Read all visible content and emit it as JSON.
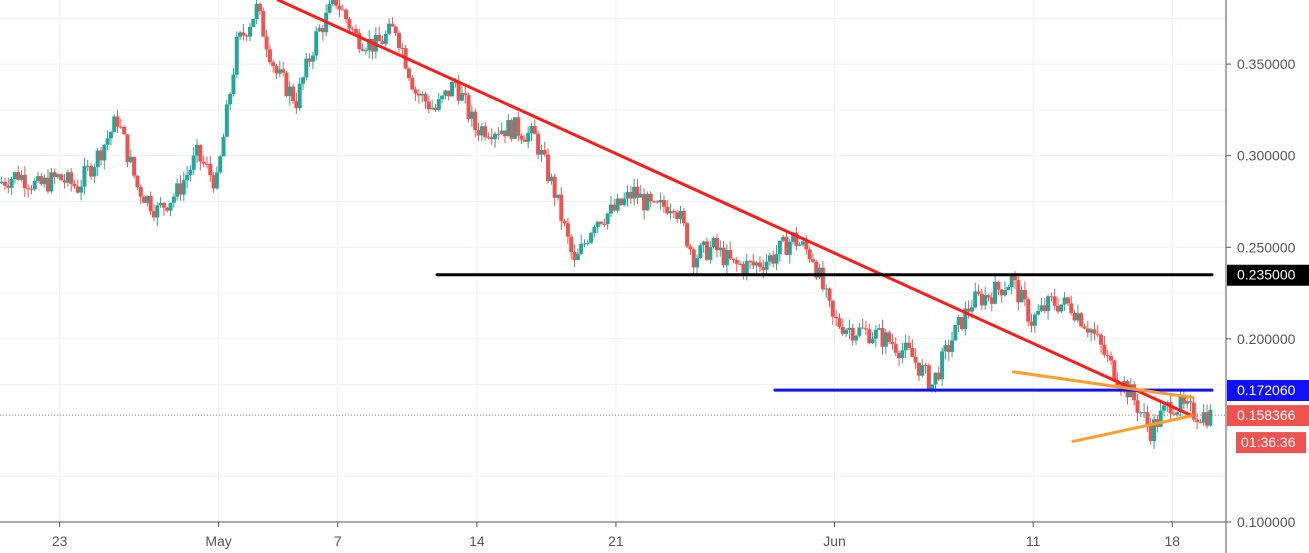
{
  "chart_data": {
    "type": "candlestick",
    "y_axis_position": "right",
    "ylim": [
      0.1,
      0.385
    ],
    "yticks": [
      {
        "value": 0.35,
        "label": "0.350000"
      },
      {
        "value": 0.3,
        "label": "0.300000"
      },
      {
        "value": 0.25,
        "label": "0.250000"
      },
      {
        "value": 0.2,
        "label": "0.200000"
      },
      {
        "value": 0.1,
        "label": "0.100000"
      }
    ],
    "xlim": [
      "2018-04-20",
      "2018-06-20"
    ],
    "xticks": [
      {
        "date": "2018-04-23",
        "label": "23"
      },
      {
        "date": "2018-05-01",
        "label": "May"
      },
      {
        "date": "2018-05-07",
        "label": "7"
      },
      {
        "date": "2018-05-14",
        "label": "14"
      },
      {
        "date": "2018-05-21",
        "label": "21"
      },
      {
        "date": "2018-06-01",
        "label": "Jun"
      },
      {
        "date": "2018-06-11",
        "label": "11"
      },
      {
        "date": "2018-06-18",
        "label": "18"
      }
    ],
    "grid": true,
    "up_color": "#26a69a",
    "down_color": "#ef5350",
    "price_path": [
      [
        "2018-04-20",
        0.285
      ],
      [
        "2018-04-21",
        0.29
      ],
      [
        "2018-04-22",
        0.283
      ],
      [
        "2018-04-23",
        0.288
      ],
      [
        "2018-04-24",
        0.283
      ],
      [
        "2018-04-25",
        0.3
      ],
      [
        "2018-04-26",
        0.32
      ],
      [
        "2018-04-27",
        0.283
      ],
      [
        "2018-04-28",
        0.27
      ],
      [
        "2018-04-29",
        0.28
      ],
      [
        "2018-04-30",
        0.3
      ],
      [
        "2018-05-01",
        0.285
      ],
      [
        "2018-05-02",
        0.36
      ],
      [
        "2018-05-03",
        0.38
      ],
      [
        "2018-05-04",
        0.345
      ],
      [
        "2018-05-05",
        0.33
      ],
      [
        "2018-05-06",
        0.365
      ],
      [
        "2018-05-07",
        0.385
      ],
      [
        "2018-05-08",
        0.365
      ],
      [
        "2018-05-09",
        0.36
      ],
      [
        "2018-05-10",
        0.37
      ],
      [
        "2018-05-11",
        0.335
      ],
      [
        "2018-05-12",
        0.325
      ],
      [
        "2018-05-13",
        0.34
      ],
      [
        "2018-05-14",
        0.315
      ],
      [
        "2018-05-15",
        0.315
      ],
      [
        "2018-05-16",
        0.315
      ],
      [
        "2018-05-17",
        0.31
      ],
      [
        "2018-05-18",
        0.28
      ],
      [
        "2018-05-19",
        0.24
      ],
      [
        "2018-05-20",
        0.265
      ],
      [
        "2018-05-21",
        0.27
      ],
      [
        "2018-05-22",
        0.28
      ],
      [
        "2018-05-23",
        0.27
      ],
      [
        "2018-05-24",
        0.275
      ],
      [
        "2018-05-25",
        0.245
      ],
      [
        "2018-05-26",
        0.25
      ],
      [
        "2018-05-27",
        0.24
      ],
      [
        "2018-05-28",
        0.24
      ],
      [
        "2018-05-29",
        0.245
      ],
      [
        "2018-05-30",
        0.255
      ],
      [
        "2018-05-31",
        0.245
      ],
      [
        "2018-06-01",
        0.21
      ],
      [
        "2018-06-02",
        0.205
      ],
      [
        "2018-06-03",
        0.203
      ],
      [
        "2018-06-04",
        0.198
      ],
      [
        "2018-06-05",
        0.19
      ],
      [
        "2018-06-06",
        0.175
      ],
      [
        "2018-06-07",
        0.2
      ],
      [
        "2018-06-08",
        0.22
      ],
      [
        "2018-06-09",
        0.225
      ],
      [
        "2018-06-10",
        0.232
      ],
      [
        "2018-06-11",
        0.21
      ],
      [
        "2018-06-12",
        0.22
      ],
      [
        "2018-06-13",
        0.218
      ],
      [
        "2018-06-14",
        0.205
      ],
      [
        "2018-06-15",
        0.185
      ],
      [
        "2018-06-16",
        0.17
      ],
      [
        "2018-06-17",
        0.15
      ],
      [
        "2018-06-18",
        0.165
      ],
      [
        "2018-06-19",
        0.16
      ],
      [
        "2018-06-20",
        0.158
      ]
    ],
    "trendlines": [
      {
        "color": "#ff1a1a",
        "from": [
          "2018-05-04",
          0.385
        ],
        "to": [
          "2018-06-19",
          0.158
        ]
      },
      {
        "color": "#000000",
        "from": [
          "2018-05-12",
          0.235
        ],
        "to": [
          "2018-06-20",
          0.235
        ]
      },
      {
        "color": "#1010ff",
        "from": [
          "2018-05-29",
          0.172
        ],
        "to": [
          "2018-06-20",
          0.172
        ]
      },
      {
        "color": "#ff9d26",
        "from": [
          "2018-06-10",
          0.182
        ],
        "to": [
          "2018-06-19",
          0.168
        ]
      },
      {
        "color": "#ff9d26",
        "from": [
          "2018-06-13",
          0.144
        ],
        "to": [
          "2018-06-19",
          0.158
        ]
      }
    ],
    "price_line": {
      "value": 0.158366,
      "color": "#ef5350"
    },
    "axis_badges": [
      {
        "value": 0.235,
        "label": "0.235000",
        "bg": "#000000"
      },
      {
        "value": 0.17206,
        "label": "0.172060",
        "bg": "#1010ff"
      },
      {
        "value": 0.158366,
        "label": "0.158366",
        "bg": "#ef5350"
      }
    ],
    "countdown_badge": {
      "label": "01:36:36",
      "bg": "#ef5350"
    }
  }
}
